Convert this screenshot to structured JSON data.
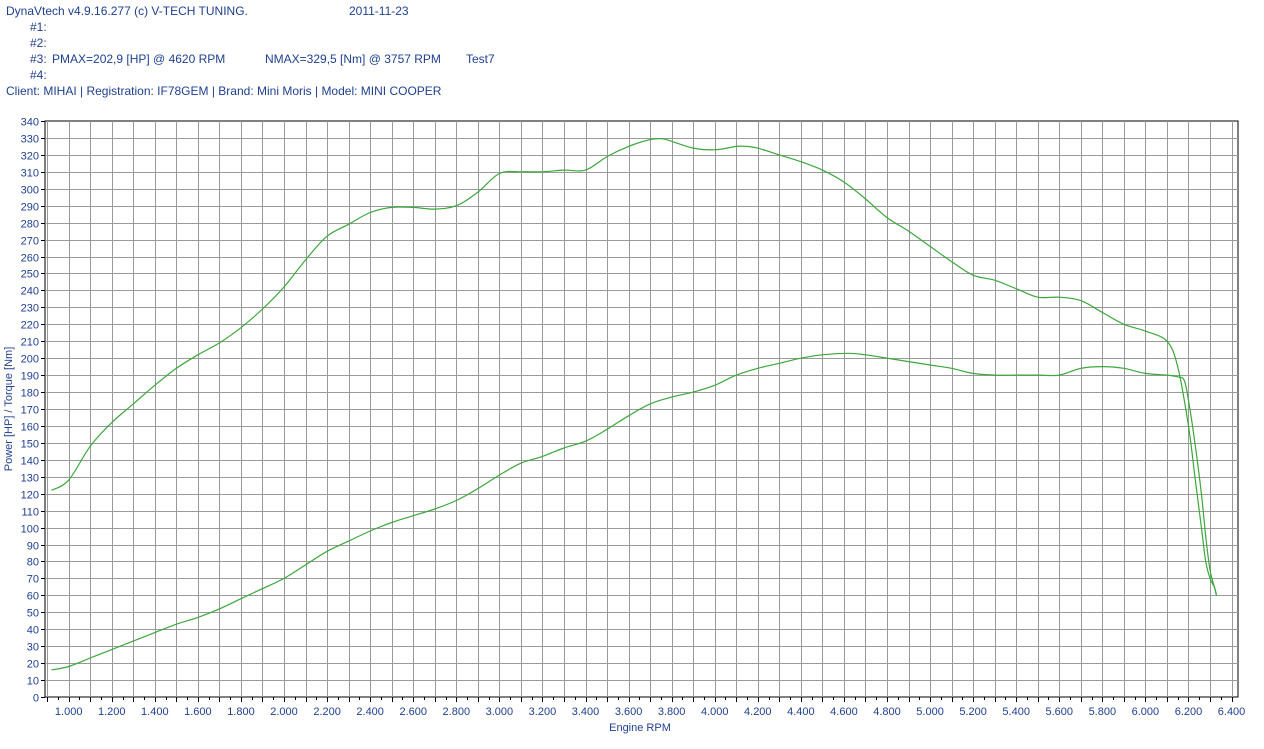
{
  "header": {
    "app": "DynaVtech v4.9.16.277 (c) V-TECH TUNING.",
    "date": "2011-11-23",
    "run1": "#1:",
    "run2": "#2:",
    "run3_label": "#3:",
    "run3_pmax": "PMAX=202,9 [HP] @ 4620 RPM",
    "run3_nmax": "NMAX=329,5 [Nm] @ 3757 RPM",
    "run3_name": "Test7",
    "run4": "#4:",
    "client": "Client: MIHAI | Registration: IF78GEM | Brand: Mini Moris | Model: MINI COOPER"
  },
  "chart_data": {
    "type": "line",
    "xlabel": "Engine RPM",
    "ylabel": "Power [HP] / Torque [Nm]",
    "xlim": [
      890,
      6430
    ],
    "ylim": [
      0,
      340
    ],
    "grid": true,
    "x_ticks": [
      "1.000",
      "1.200",
      "1.400",
      "1.600",
      "1.800",
      "2.000",
      "2.200",
      "2.400",
      "2.600",
      "2.800",
      "3.000",
      "3.200",
      "3.400",
      "3.600",
      "3.800",
      "4.000",
      "4.200",
      "4.400",
      "4.600",
      "4.800",
      "5.000",
      "5.200",
      "5.400",
      "5.600",
      "5.800",
      "6.000",
      "6.200",
      "6.400"
    ],
    "x_tick_values": [
      1000,
      1200,
      1400,
      1600,
      1800,
      2000,
      2200,
      2400,
      2600,
      2800,
      3000,
      3200,
      3400,
      3600,
      3800,
      4000,
      4200,
      4400,
      4600,
      4800,
      5000,
      5200,
      5400,
      5600,
      5800,
      6000,
      6200,
      6400
    ],
    "y_ticks": [
      0,
      10,
      20,
      30,
      40,
      50,
      60,
      70,
      80,
      90,
      100,
      110,
      120,
      130,
      140,
      150,
      160,
      170,
      180,
      190,
      200,
      210,
      220,
      230,
      240,
      250,
      260,
      270,
      280,
      290,
      300,
      310,
      320,
      330,
      340
    ],
    "line_color": "#3aa83a",
    "series": [
      {
        "x": [
          920,
          1000,
          1100,
          1200,
          1300,
          1400,
          1500,
          1600,
          1700,
          1800,
          1900,
          2000,
          2100,
          2200,
          2300,
          2400,
          2500,
          2600,
          2700,
          2800,
          2900,
          3000,
          3100,
          3200,
          3300,
          3400,
          3500,
          3600,
          3700,
          3757,
          3800,
          3900,
          4000,
          4100,
          4150,
          4200,
          4300,
          4400,
          4500,
          4600,
          4700,
          4800,
          4900,
          5000,
          5100,
          5200,
          5300,
          5400,
          5500,
          5600,
          5700,
          5800,
          5900,
          6000,
          6100,
          6150,
          6200,
          6230,
          6260,
          6280,
          6300,
          6320,
          6330
        ],
        "values": [
          122,
          128,
          148,
          162,
          173,
          184,
          194,
          202,
          209,
          218,
          229,
          242,
          258,
          272,
          279,
          286,
          289,
          289,
          288,
          290,
          298,
          309,
          310,
          310,
          311,
          311,
          319,
          325,
          329,
          329.5,
          328,
          324,
          323,
          325,
          325,
          324,
          320,
          316,
          311,
          304,
          294,
          283,
          275,
          266,
          257,
          249,
          246,
          241,
          236,
          236,
          234,
          227,
          220,
          216,
          210,
          195,
          160,
          130,
          100,
          80,
          70,
          65,
          60
        ]
      },
      {
        "x": [
          920,
          1000,
          1100,
          1200,
          1300,
          1400,
          1500,
          1600,
          1700,
          1800,
          1900,
          2000,
          2100,
          2200,
          2300,
          2400,
          2500,
          2600,
          2700,
          2800,
          2900,
          3000,
          3100,
          3200,
          3300,
          3400,
          3500,
          3600,
          3700,
          3800,
          3900,
          4000,
          4100,
          4200,
          4300,
          4400,
          4500,
          4620,
          4700,
          4800,
          4900,
          5000,
          5100,
          5200,
          5300,
          5400,
          5500,
          5600,
          5700,
          5800,
          5900,
          6000,
          6100,
          6150,
          6180,
          6200,
          6230,
          6260,
          6280,
          6300,
          6320,
          6330
        ],
        "values": [
          16,
          18,
          23,
          28,
          33,
          38,
          43,
          47,
          52,
          58,
          64,
          70,
          78,
          86,
          92,
          98,
          103,
          107,
          111,
          116,
          123,
          131,
          138,
          142,
          147,
          151,
          158,
          166,
          173,
          177,
          180,
          184,
          190,
          194,
          197,
          200,
          202,
          202.9,
          202,
          200,
          198,
          196,
          194,
          191,
          190,
          190,
          190,
          190,
          194,
          195,
          194,
          191,
          190,
          189,
          187,
          175,
          150,
          120,
          95,
          75,
          65,
          60
        ]
      }
    ]
  }
}
